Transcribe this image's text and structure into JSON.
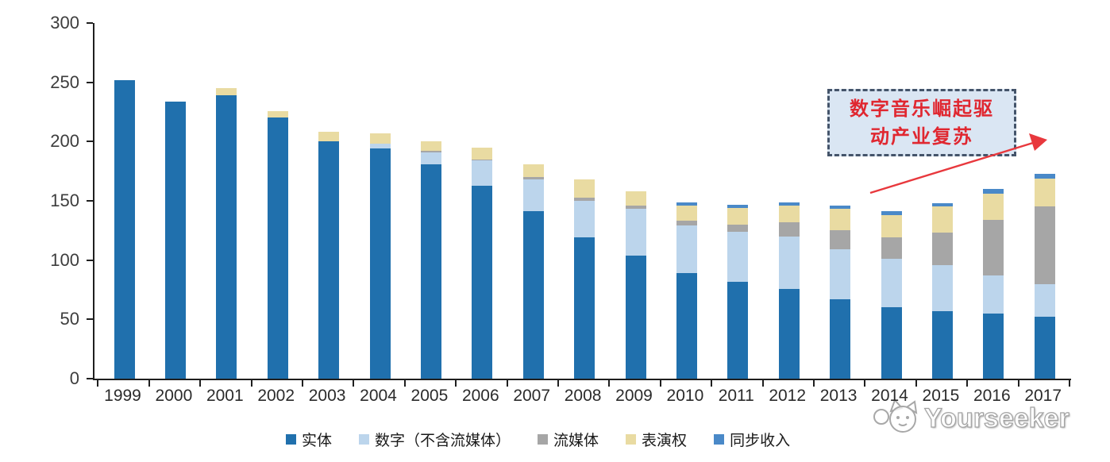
{
  "chart_data": {
    "type": "bar",
    "stacked": true,
    "title": "",
    "xlabel": "",
    "ylabel": "",
    "ylim": [
      0,
      300
    ],
    "ytick_step": 50,
    "yticks": [
      "0",
      "50",
      "100",
      "150",
      "200",
      "250",
      "300"
    ],
    "grid": false,
    "legend_position": "bottom",
    "categories": [
      "1999",
      "2000",
      "2001",
      "2002",
      "2003",
      "2004",
      "2005",
      "2006",
      "2007",
      "2008",
      "2009",
      "2010",
      "2011",
      "2012",
      "2013",
      "2014",
      "2015",
      "2016",
      "2017"
    ],
    "series": [
      {
        "name": "实体",
        "color": "#2070AD",
        "values": [
          252,
          234,
          239,
          220,
          200,
          194,
          181,
          163,
          141,
          119,
          104,
          89,
          82,
          76,
          67,
          60,
          57,
          55,
          52
        ]
      },
      {
        "name": "数字（不含流媒体）",
        "color": "#BCD5EC",
        "values": [
          0,
          0,
          0,
          0,
          0,
          4,
          10,
          21,
          27,
          31,
          39,
          40,
          42,
          44,
          42,
          41,
          39,
          32,
          28
        ]
      },
      {
        "name": "流媒体",
        "color": "#A6A6A6",
        "values": [
          0,
          0,
          0,
          0,
          0,
          0,
          1,
          1,
          2,
          3,
          3,
          4,
          6,
          12,
          16,
          18,
          27,
          47,
          65
        ]
      },
      {
        "name": "表演权",
        "color": "#E9DBA2",
        "values": [
          0,
          0,
          6,
          6,
          8,
          9,
          8,
          10,
          11,
          15,
          12,
          13,
          14,
          14,
          18,
          19,
          22,
          22,
          24
        ]
      },
      {
        "name": "同步收入",
        "color": "#4A89C8",
        "values": [
          0,
          0,
          0,
          0,
          0,
          0,
          0,
          0,
          0,
          0,
          0,
          3,
          3,
          3,
          3,
          3,
          3,
          4,
          4
        ]
      }
    ]
  },
  "annotation": {
    "line1": "数字音乐崛起驱",
    "line2": "动产业复苏",
    "text_color": "#E02730",
    "border_color": "#44546A",
    "fill_color": "#DAE6F3",
    "arrow_color": "#E8383D"
  },
  "watermark": {
    "text": "Yourseeker"
  }
}
